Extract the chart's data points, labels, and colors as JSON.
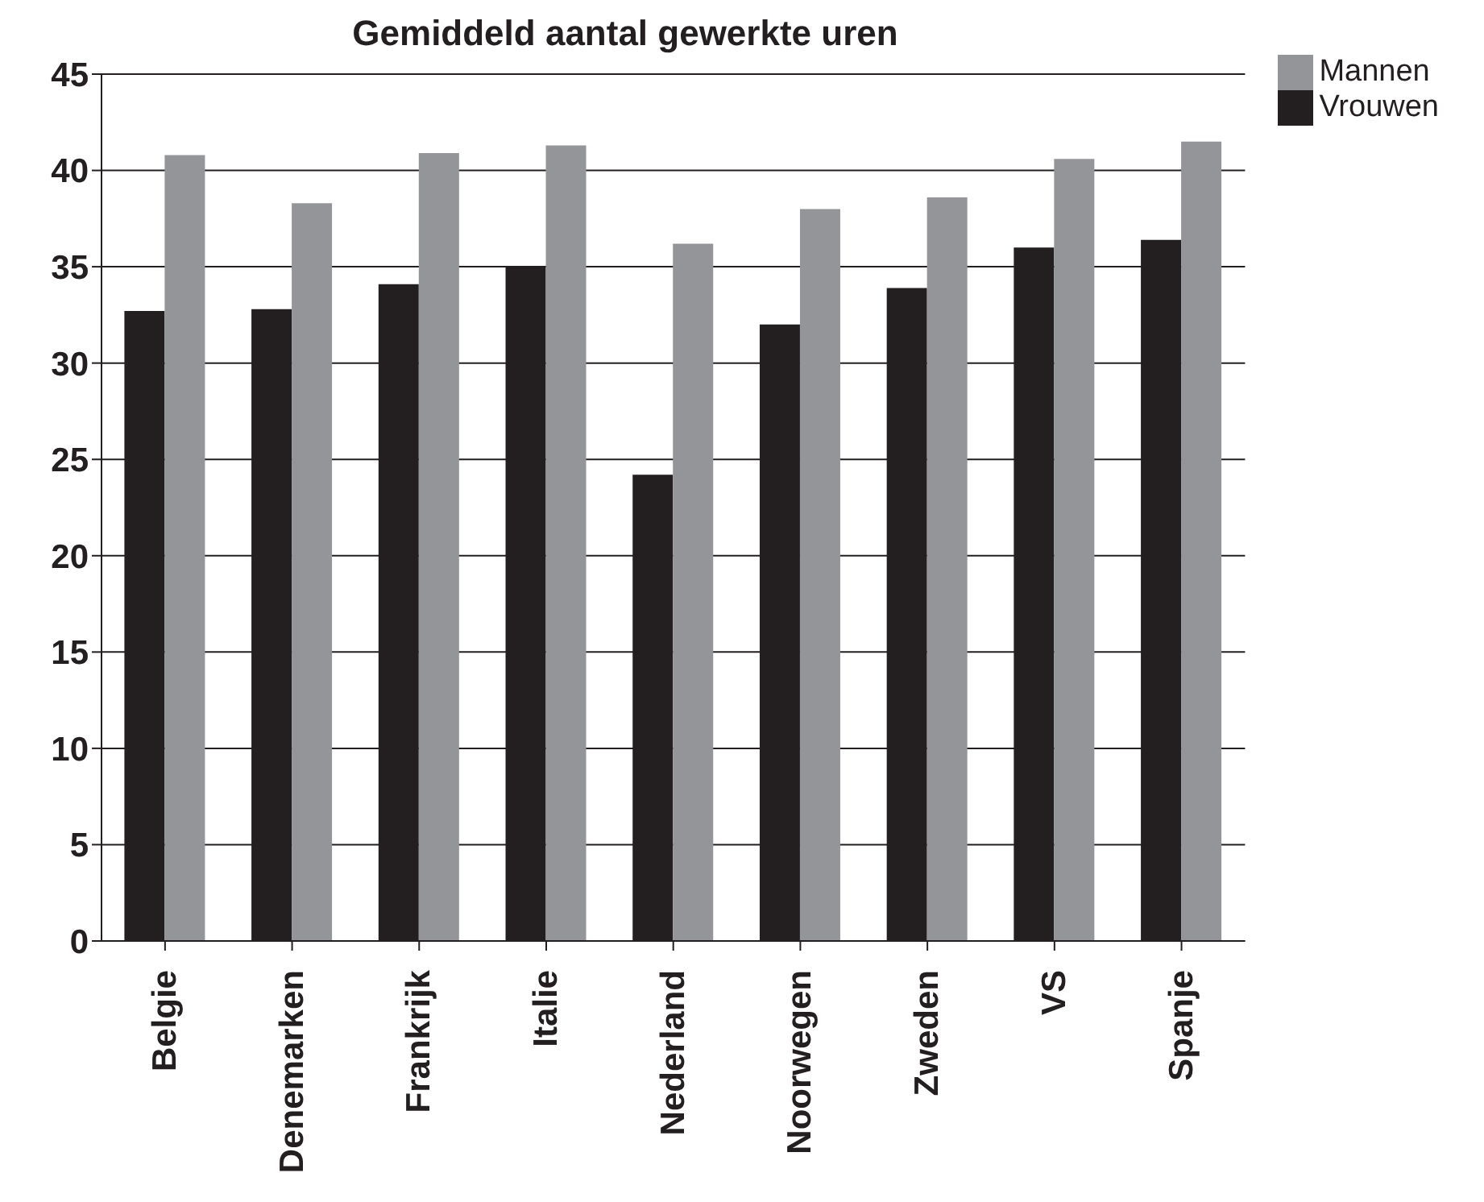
{
  "chart_data": {
    "type": "bar",
    "title": "Gemiddeld aantal gewerkte uren",
    "categories": [
      "Belgie",
      "Denemarken",
      "Frankrijk",
      "Italie",
      "Nederland",
      "Noorwegen",
      "Zweden",
      "VS",
      "Spanje"
    ],
    "series": [
      {
        "name": "Vrouwen",
        "color": "#231f20",
        "values": [
          32.7,
          32.8,
          34.1,
          35.0,
          24.2,
          32.0,
          33.9,
          36.0,
          36.4
        ]
      },
      {
        "name": "Mannen",
        "color": "#939598",
        "values": [
          40.8,
          38.3,
          40.9,
          41.3,
          36.2,
          38.0,
          38.6,
          40.6,
          41.5
        ]
      }
    ],
    "ylim": [
      0,
      45
    ],
    "yticks": [
      0,
      5,
      10,
      15,
      20,
      25,
      30,
      35,
      40,
      45
    ],
    "grid": "y",
    "legend": "top right"
  }
}
